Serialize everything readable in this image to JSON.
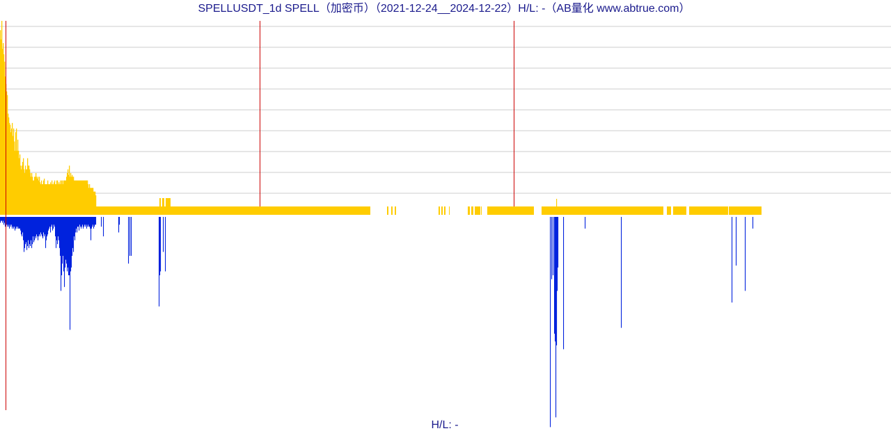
{
  "chart_data": {
    "type": "bar",
    "title": "SPELLUSDT_1d SPELL（加密币）（2021-12-24__2024-12-22）H/L: -（AB量化  www.abtrue.com）",
    "footer_label": "H/L: -",
    "x_range": [
      "2021-12-24",
      "2024-12-22"
    ],
    "grid": "horizontal",
    "colors": {
      "upper_bars": "#ffcc00",
      "lower_bars": "#0022dd",
      "markers": "#cc0000",
      "grid": "#cccccc",
      "text": "#1a1a8c"
    },
    "series": [
      {
        "name": "",
        "values": [
          [
            0,
            0.95
          ],
          [
            1,
            0.9
          ],
          [
            2,
            1.0
          ],
          [
            3,
            0.85
          ],
          [
            4,
            0.88
          ],
          [
            5,
            0.82
          ],
          [
            6,
            0.78
          ],
          [
            7,
            0.7
          ],
          [
            8,
            0.66
          ],
          [
            9,
            0.62
          ],
          [
            10,
            0.6
          ],
          [
            11,
            0.5
          ],
          [
            12,
            0.48
          ],
          [
            13,
            0.45
          ],
          [
            14,
            0.44
          ],
          [
            15,
            0.4
          ],
          [
            16,
            0.42
          ],
          [
            17,
            0.45
          ],
          [
            18,
            0.38
          ],
          [
            19,
            0.42
          ],
          [
            20,
            0.35
          ],
          [
            21,
            0.3
          ],
          [
            22,
            0.4
          ],
          [
            23,
            0.42
          ],
          [
            24,
            0.3
          ],
          [
            25,
            0.36
          ],
          [
            26,
            0.3
          ],
          [
            27,
            0.26
          ],
          [
            28,
            0.28
          ],
          [
            29,
            0.22
          ],
          [
            30,
            0.2
          ],
          [
            31,
            0.22
          ],
          [
            32,
            0.24
          ],
          [
            33,
            0.26
          ],
          [
            34,
            0.2
          ],
          [
            35,
            0.18
          ],
          [
            36,
            0.22
          ],
          [
            37,
            0.2
          ],
          [
            38,
            0.2
          ],
          [
            39,
            0.26
          ],
          [
            40,
            0.22
          ],
          [
            41,
            0.22
          ],
          [
            42,
            0.2
          ],
          [
            43,
            0.18
          ],
          [
            44,
            0.16
          ],
          [
            45,
            0.18
          ],
          [
            46,
            0.16
          ],
          [
            47,
            0.14
          ],
          [
            48,
            0.14
          ],
          [
            49,
            0.16
          ],
          [
            50,
            0.16
          ],
          [
            51,
            0.18
          ],
          [
            52,
            0.16
          ],
          [
            53,
            0.15
          ],
          [
            54,
            0.16
          ],
          [
            55,
            0.14
          ],
          [
            56,
            0.16
          ],
          [
            57,
            0.13
          ],
          [
            58,
            0.12
          ],
          [
            59,
            0.14
          ],
          [
            60,
            0.12
          ],
          [
            61,
            0.12
          ],
          [
            62,
            0.14
          ],
          [
            63,
            0.15
          ],
          [
            64,
            0.12
          ],
          [
            65,
            0.12
          ],
          [
            66,
            0.12
          ],
          [
            67,
            0.12
          ],
          [
            68,
            0.14
          ],
          [
            69,
            0.12
          ],
          [
            70,
            0.12
          ],
          [
            71,
            0.12
          ],
          [
            72,
            0.13
          ],
          [
            73,
            0.12
          ],
          [
            74,
            0.14
          ],
          [
            75,
            0.12
          ],
          [
            76,
            0.12
          ],
          [
            77,
            0.13
          ],
          [
            78,
            0.14
          ],
          [
            79,
            0.12
          ],
          [
            80,
            0.12
          ],
          [
            81,
            0.14
          ],
          [
            82,
            0.14
          ],
          [
            83,
            0.12
          ],
          [
            84,
            0.13
          ],
          [
            85,
            0.12
          ],
          [
            86,
            0.14
          ],
          [
            87,
            0.12
          ],
          [
            88,
            0.14
          ],
          [
            89,
            0.14
          ],
          [
            90,
            0.12
          ],
          [
            91,
            0.14
          ],
          [
            92,
            0.14
          ],
          [
            93,
            0.14
          ],
          [
            94,
            0.14
          ],
          [
            95,
            0.16
          ],
          [
            96,
            0.18
          ],
          [
            97,
            0.2
          ],
          [
            98,
            0.17
          ],
          [
            99,
            0.22
          ],
          [
            100,
            0.16
          ],
          [
            101,
            0.18
          ],
          [
            102,
            0.16
          ],
          [
            103,
            0.17
          ],
          [
            104,
            0.16
          ],
          [
            105,
            0.16
          ],
          [
            106,
            0.14
          ],
          [
            107,
            0.14
          ],
          [
            108,
            0.14
          ],
          [
            109,
            0.14
          ],
          [
            110,
            0.14
          ],
          [
            111,
            0.14
          ],
          [
            112,
            0.14
          ],
          [
            113,
            0.14
          ],
          [
            114,
            0.14
          ],
          [
            115,
            0.14
          ],
          [
            116,
            0.14
          ],
          [
            117,
            0.14
          ],
          [
            118,
            0.14
          ],
          [
            119,
            0.14
          ],
          [
            120,
            0.14
          ],
          [
            121,
            0.14
          ],
          [
            122,
            0.14
          ],
          [
            123,
            0.14
          ],
          [
            124,
            0.14
          ],
          [
            125,
            0.14
          ],
          [
            126,
            0.12
          ],
          [
            127,
            0.1
          ],
          [
            128,
            0.12
          ],
          [
            129,
            0.1
          ],
          [
            130,
            0.1
          ],
          [
            131,
            0.1
          ],
          [
            132,
            0.1
          ],
          [
            133,
            0.1
          ],
          [
            134,
            0.08
          ],
          [
            135,
            0.08
          ],
          [
            136,
            0.08
          ],
          [
            137,
            0.06
          ]
        ]
      },
      {
        "name": "",
        "values": [
          [
            0,
            -0.03
          ],
          [
            1,
            -0.02
          ],
          [
            2,
            -0.02
          ],
          [
            3,
            -0.03
          ],
          [
            4,
            -0.02
          ],
          [
            5,
            -0.04
          ],
          [
            6,
            -0.03
          ],
          [
            7,
            -0.05
          ],
          [
            8,
            -0.03
          ],
          [
            9,
            -0.04
          ],
          [
            10,
            -0.05
          ],
          [
            11,
            -0.04
          ],
          [
            12,
            -0.05
          ],
          [
            13,
            -0.06
          ],
          [
            14,
            -0.04
          ],
          [
            15,
            -0.05
          ],
          [
            16,
            -0.04
          ],
          [
            17,
            -0.06
          ],
          [
            18,
            -0.05
          ],
          [
            19,
            -0.06
          ],
          [
            20,
            -0.05
          ],
          [
            21,
            -0.07
          ],
          [
            22,
            -0.06
          ],
          [
            23,
            -0.05
          ],
          [
            24,
            -0.06
          ],
          [
            25,
            -0.05
          ],
          [
            26,
            -0.06
          ],
          [
            27,
            -0.06
          ],
          [
            28,
            -0.06
          ],
          [
            29,
            -0.07
          ],
          [
            30,
            -0.09
          ],
          [
            31,
            -0.1
          ],
          [
            32,
            -0.08
          ],
          [
            33,
            -0.12
          ],
          [
            34,
            -0.18
          ],
          [
            35,
            -0.16
          ],
          [
            36,
            -0.14
          ],
          [
            37,
            -0.13
          ],
          [
            38,
            -0.17
          ],
          [
            39,
            -0.15
          ],
          [
            40,
            -0.12
          ],
          [
            41,
            -0.16
          ],
          [
            42,
            -0.14
          ],
          [
            43,
            -0.15
          ],
          [
            44,
            -0.12
          ],
          [
            45,
            -0.16
          ],
          [
            46,
            -0.14
          ],
          [
            47,
            -0.1
          ],
          [
            48,
            -0.13
          ],
          [
            49,
            -0.12
          ],
          [
            50,
            -0.1
          ],
          [
            51,
            -0.11
          ],
          [
            52,
            -0.09
          ],
          [
            53,
            -0.1
          ],
          [
            54,
            -0.12
          ],
          [
            55,
            -0.1
          ],
          [
            56,
            -0.09
          ],
          [
            57,
            -0.1
          ],
          [
            58,
            -0.08
          ],
          [
            59,
            -0.09
          ],
          [
            60,
            -0.1
          ],
          [
            61,
            -0.11
          ],
          [
            62,
            -0.08
          ],
          [
            63,
            -0.1
          ],
          [
            64,
            -0.09
          ],
          [
            65,
            -0.16
          ],
          [
            66,
            -0.12
          ],
          [
            67,
            -0.1
          ],
          [
            68,
            -0.09
          ],
          [
            69,
            -0.07
          ],
          [
            70,
            -0.06
          ],
          [
            71,
            -0.05
          ],
          [
            72,
            -0.08
          ],
          [
            73,
            -0.05
          ],
          [
            74,
            -0.04
          ],
          [
            75,
            -0.07
          ],
          [
            76,
            -0.06
          ],
          [
            77,
            -0.04
          ],
          [
            78,
            -0.05
          ],
          [
            79,
            -0.1
          ],
          [
            80,
            -0.16
          ],
          [
            81,
            -0.12
          ],
          [
            82,
            -0.14
          ],
          [
            83,
            -0.1
          ],
          [
            84,
            -0.12
          ],
          [
            85,
            -0.16
          ],
          [
            86,
            -0.2
          ],
          [
            87,
            -0.38
          ],
          [
            88,
            -0.3
          ],
          [
            89,
            -0.24
          ],
          [
            90,
            -0.2
          ],
          [
            91,
            -0.28
          ],
          [
            92,
            -0.36
          ],
          [
            93,
            -0.26
          ],
          [
            94,
            -0.22
          ],
          [
            95,
            -0.24
          ],
          [
            96,
            -0.28
          ],
          [
            97,
            -0.26
          ],
          [
            98,
            -0.3
          ],
          [
            99,
            -0.3
          ],
          [
            100,
            -0.58
          ],
          [
            101,
            -0.28
          ],
          [
            102,
            -0.26
          ],
          [
            103,
            -0.2
          ],
          [
            104,
            -0.16
          ],
          [
            105,
            -0.18
          ],
          [
            106,
            -0.1
          ],
          [
            107,
            -0.12
          ],
          [
            108,
            -0.08
          ],
          [
            109,
            -0.06
          ],
          [
            110,
            -0.08
          ],
          [
            111,
            -0.05
          ],
          [
            112,
            -0.05
          ],
          [
            113,
            -0.07
          ],
          [
            114,
            -0.04
          ],
          [
            115,
            -0.05
          ],
          [
            116,
            -0.06
          ],
          [
            117,
            -0.05
          ],
          [
            118,
            -0.04
          ],
          [
            119,
            -0.06
          ],
          [
            120,
            -0.05
          ],
          [
            121,
            -0.04
          ],
          [
            122,
            -0.05
          ],
          [
            123,
            -0.04
          ],
          [
            124,
            -0.06
          ],
          [
            125,
            -0.05
          ],
          [
            126,
            -0.04
          ],
          [
            127,
            -0.05
          ],
          [
            128,
            -0.05
          ],
          [
            129,
            -0.06
          ],
          [
            130,
            -0.12
          ],
          [
            131,
            -0.06
          ],
          [
            132,
            -0.05
          ],
          [
            133,
            -0.04
          ],
          [
            134,
            -0.06
          ],
          [
            135,
            -0.05
          ],
          [
            136,
            -0.04
          ],
          [
            137,
            -0.04
          ],
          [
            145,
            -0.05
          ],
          [
            148,
            -0.1
          ],
          [
            170,
            -0.08
          ],
          [
            171,
            -0.04
          ],
          [
            184,
            -0.24
          ],
          [
            186,
            -0.2
          ],
          [
            188,
            -0.2
          ],
          [
            228,
            -0.46
          ],
          [
            229,
            -0.3
          ],
          [
            230,
            -0.28
          ],
          [
            234,
            -0.18
          ],
          [
            237,
            -0.28
          ],
          [
            790,
            -1.08
          ],
          [
            792,
            -0.32
          ],
          [
            794,
            -0.3
          ],
          [
            796,
            -0.6
          ],
          [
            797,
            -0.64
          ],
          [
            798,
            -1.03
          ],
          [
            799,
            -0.66
          ],
          [
            800,
            -0.38
          ],
          [
            801,
            -0.26
          ],
          [
            809,
            -0.68
          ],
          [
            840,
            -0.06
          ],
          [
            892,
            -0.57
          ],
          [
            1051,
            -0.44
          ],
          [
            1057,
            -0.25
          ],
          [
            1070,
            -0.38
          ],
          [
            1081,
            -0.06
          ]
        ]
      }
    ],
    "filled_segments": [
      [
        138,
        532
      ],
      [
        556,
        558
      ],
      [
        562,
        564
      ],
      [
        567,
        569
      ],
      [
        630,
        632
      ],
      [
        634,
        636
      ],
      [
        638,
        640
      ],
      [
        645,
        646
      ],
      [
        672,
        675
      ],
      [
        677,
        680
      ],
      [
        682,
        690
      ],
      [
        691,
        692
      ],
      [
        700,
        767
      ],
      [
        778,
        953
      ],
      [
        958,
        964
      ],
      [
        967,
        986
      ],
      [
        990,
        1046
      ],
      [
        1047,
        1094
      ],
      [
        229,
        231
      ],
      [
        233,
        236
      ],
      [
        238,
        245
      ]
    ],
    "marker_lines": [
      [
        8,
        30,
        590
      ],
      [
        373,
        30,
        297
      ],
      [
        738,
        30,
        297
      ]
    ]
  }
}
